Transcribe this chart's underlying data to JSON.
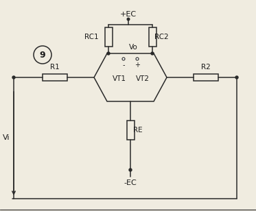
{
  "bg_color": "#f0ece0",
  "line_color": "#2a2a2a",
  "text_color": "#1a1a1a",
  "label_EC_pos": "+EC",
  "label_EC_neg": "-EC",
  "label_RC1": "RC1",
  "label_RC2": "RC2",
  "label_RE": "RE",
  "label_R1": "R1",
  "label_R2": "R2",
  "label_VT1": "VT1",
  "label_VT2": "VT2",
  "label_Vo": "Vo",
  "label_Vi": "Vi",
  "label_num": "9",
  "figsize": [
    3.73,
    3.08
  ],
  "dpi": 100
}
